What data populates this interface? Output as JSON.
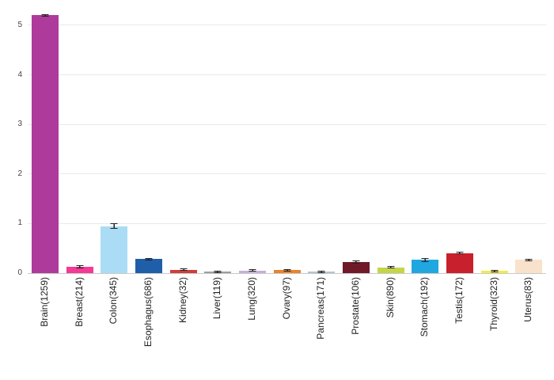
{
  "chart_data": {
    "type": "bar",
    "title": "",
    "xlabel": "",
    "ylabel": "",
    "categories": [
      "Brain(1259)",
      "Breast(214)",
      "Colon(345)",
      "Esophagus(686)",
      "Kidney(32)",
      "Liver(119)",
      "Lung(320)",
      "Ovary(97)",
      "Pancreas(171)",
      "Prostate(106)",
      "Skin(890)",
      "Stomach(192)",
      "Testis(172)",
      "Thyroid(323)",
      "Uterus(83)"
    ],
    "values": [
      5.2,
      0.13,
      0.95,
      0.28,
      0.07,
      0.025,
      0.055,
      0.06,
      0.03,
      0.22,
      0.12,
      0.27,
      0.4,
      0.045,
      0.27
    ],
    "errors": [
      0.03,
      0.03,
      0.05,
      0.02,
      0.02,
      0.01,
      0.01,
      0.02,
      0.01,
      0.03,
      0.01,
      0.04,
      0.02,
      0.01,
      0.02
    ],
    "colors": [
      "#ae3a9c",
      "#f23a96",
      "#aadcf5",
      "#1f5fa9",
      "#d03c3c",
      "#9e9e9e",
      "#c7afd9",
      "#e8832e",
      "#b6c3cd",
      "#701a28",
      "#c4d549",
      "#21a7e0",
      "#c9202e",
      "#f3eb49",
      "#f9e2cb"
    ],
    "yticks": [
      0,
      1,
      2,
      3,
      4,
      5
    ],
    "ylim": [
      0,
      5.35
    ],
    "grid": true,
    "legend": false,
    "error_bar_color": "#222222",
    "background": "#ffffff"
  }
}
